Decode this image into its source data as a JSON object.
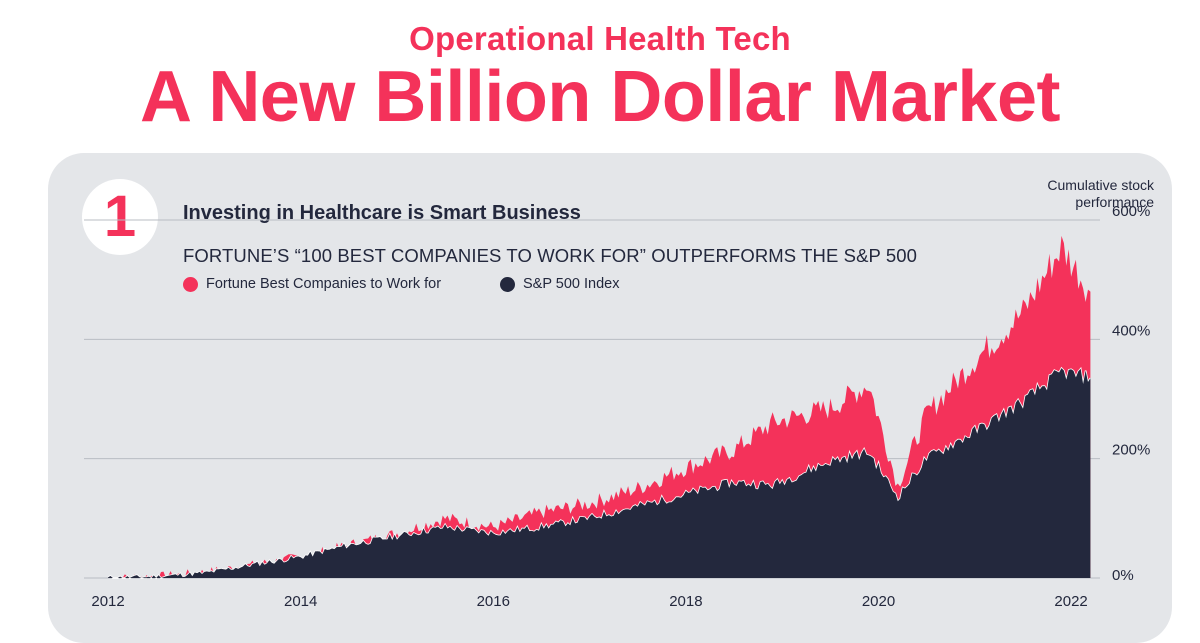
{
  "header": {
    "subtitle": "Operational Health Tech",
    "title": "A New Billion Dollar Market"
  },
  "panel": {
    "number": "1",
    "title": "Investing in Healthcare is Smart Business",
    "subtitle": "FORTUNE’S “100 BEST COMPANIES TO WORK FOR” OUTPERFORMS THE S&P 500",
    "ylabel_line1": "Cumulative stock",
    "ylabel_line2": "performance"
  },
  "colors": {
    "accent": "#f4325a",
    "dark": "#23283d",
    "panel_bg": "#e4e6e9"
  },
  "chart_data": {
    "type": "area",
    "title": "",
    "xlabel": "",
    "ylabel": "Cumulative stock performance",
    "x": [
      2012.0,
      2012.5,
      2013.0,
      2013.5,
      2014.0,
      2014.5,
      2015.0,
      2015.5,
      2016.0,
      2016.5,
      2017.0,
      2017.5,
      2018.0,
      2018.5,
      2018.9,
      2019.5,
      2019.9,
      2020.2,
      2020.5,
      2021.0,
      2021.5,
      2021.9,
      2022.2
    ],
    "series": [
      {
        "name": "Fortune Best Companies to Work for",
        "color": "#f4325a",
        "values": [
          0,
          3,
          10,
          22,
          35,
          55,
          75,
          100,
          85,
          110,
          125,
          150,
          185,
          215,
          260,
          285,
          325,
          155,
          275,
          365,
          445,
          555,
          480
        ]
      },
      {
        "name": "S&P 500 Index",
        "color": "#23283d",
        "values": [
          0,
          2,
          8,
          22,
          35,
          55,
          70,
          85,
          75,
          85,
          100,
          120,
          140,
          160,
          155,
          195,
          210,
          135,
          200,
          245,
          295,
          345,
          335
        ]
      }
    ],
    "y_ticks": [
      "0%",
      "200%",
      "400%",
      "600%"
    ],
    "x_ticks": [
      "2012",
      "2014",
      "2016",
      "2018",
      "2020",
      "2022"
    ],
    "ylim": [
      0,
      600
    ],
    "xlim": [
      2011.75,
      2022.3
    ],
    "grid": true,
    "legend_position": "top-left"
  }
}
